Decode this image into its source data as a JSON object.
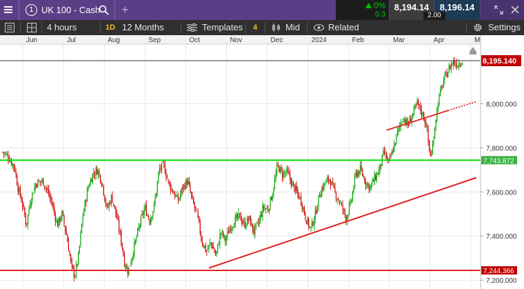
{
  "header": {
    "instrument_number": "1",
    "instrument": "UK 100 - Cash",
    "add_label": "+",
    "change_pct": "0%",
    "change_abs": "0.3",
    "sell_price": "8,194.14",
    "buy_price": "8,196.14",
    "spread": "2.00"
  },
  "toolbar": {
    "interval": "4 hours",
    "period_badge": "1D",
    "period": "12 Months",
    "templates_label": "Templates",
    "templates_count": "4",
    "price_type": "Mid",
    "related_label": "Related",
    "settings_label": "Settings"
  },
  "colors": {
    "header_bg": "#5b3f86",
    "toolbar_bg": "#2f2f2f",
    "up": "#00a000",
    "down": "#d00000",
    "support": "#00e000",
    "trend": "#e02020",
    "current_price_bg": "#c00000"
  },
  "chart_data": {
    "type": "candlestick",
    "x_labels": [
      "Jun",
      "Jul",
      "Aug",
      "Sep",
      "Oct",
      "Nov",
      "Dec",
      "2024",
      "Feb",
      "Mar",
      "Apr",
      "May"
    ],
    "y_ticks": [
      "8,000.000",
      "7,800.000",
      "7,600.000",
      "7,400.000",
      "7,200.000"
    ],
    "y_tick_values": [
      8000,
      7800,
      7600,
      7400,
      7200
    ],
    "ylim": [
      7160,
      8270
    ],
    "current_price": "8,195.140",
    "current_price_value": 8195.14,
    "horizontal_lines": [
      {
        "label": "7,743.872",
        "value": 7743.872,
        "color": "#00e000"
      },
      {
        "label": "7,244.366",
        "value": 7244.366,
        "color": "#e02020"
      }
    ],
    "trend_lines": [
      {
        "from": [
          0.435,
          7255
        ],
        "to": [
          1.0,
          7665
        ]
      },
      {
        "from": [
          0.81,
          7880
        ],
        "to": [
          1.0,
          8010
        ],
        "dotted_from": 0.94
      }
    ],
    "close_path": [
      [
        0.0,
        7780
      ],
      [
        0.012,
        7760
      ],
      [
        0.025,
        7710
      ],
      [
        0.032,
        7620
      ],
      [
        0.04,
        7560
      ],
      [
        0.05,
        7450
      ],
      [
        0.058,
        7560
      ],
      [
        0.07,
        7640
      ],
      [
        0.085,
        7650
      ],
      [
        0.095,
        7600
      ],
      [
        0.105,
        7540
      ],
      [
        0.115,
        7450
      ],
      [
        0.125,
        7500
      ],
      [
        0.135,
        7400
      ],
      [
        0.145,
        7260
      ],
      [
        0.152,
        7220
      ],
      [
        0.16,
        7310
      ],
      [
        0.168,
        7480
      ],
      [
        0.18,
        7620
      ],
      [
        0.19,
        7680
      ],
      [
        0.2,
        7700
      ],
      [
        0.21,
        7640
      ],
      [
        0.22,
        7520
      ],
      [
        0.23,
        7580
      ],
      [
        0.24,
        7490
      ],
      [
        0.25,
        7380
      ],
      [
        0.258,
        7270
      ],
      [
        0.265,
        7240
      ],
      [
        0.275,
        7330
      ],
      [
        0.29,
        7460
      ],
      [
        0.3,
        7530
      ],
      [
        0.31,
        7470
      ],
      [
        0.32,
        7540
      ],
      [
        0.33,
        7700
      ],
      [
        0.34,
        7720
      ],
      [
        0.35,
        7640
      ],
      [
        0.36,
        7600
      ],
      [
        0.37,
        7560
      ],
      [
        0.38,
        7620
      ],
      [
        0.39,
        7650
      ],
      [
        0.4,
        7560
      ],
      [
        0.41,
        7500
      ],
      [
        0.42,
        7380
      ],
      [
        0.43,
        7330
      ],
      [
        0.44,
        7370
      ],
      [
        0.45,
        7310
      ],
      [
        0.46,
        7420
      ],
      [
        0.47,
        7380
      ],
      [
        0.48,
        7440
      ],
      [
        0.49,
        7470
      ],
      [
        0.5,
        7490
      ],
      [
        0.51,
        7450
      ],
      [
        0.52,
        7480
      ],
      [
        0.53,
        7420
      ],
      [
        0.54,
        7460
      ],
      [
        0.55,
        7530
      ],
      [
        0.56,
        7520
      ],
      [
        0.57,
        7600
      ],
      [
        0.58,
        7720
      ],
      [
        0.59,
        7680
      ],
      [
        0.6,
        7690
      ],
      [
        0.61,
        7640
      ],
      [
        0.62,
        7600
      ],
      [
        0.63,
        7560
      ],
      [
        0.64,
        7480
      ],
      [
        0.65,
        7430
      ],
      [
        0.66,
        7500
      ],
      [
        0.67,
        7600
      ],
      [
        0.68,
        7640
      ],
      [
        0.69,
        7660
      ],
      [
        0.7,
        7600
      ],
      [
        0.71,
        7560
      ],
      [
        0.72,
        7510
      ],
      [
        0.725,
        7480
      ],
      [
        0.735,
        7550
      ],
      [
        0.745,
        7680
      ],
      [
        0.755,
        7700
      ],
      [
        0.765,
        7650
      ],
      [
        0.775,
        7620
      ],
      [
        0.785,
        7660
      ],
      [
        0.795,
        7700
      ],
      [
        0.805,
        7780
      ],
      [
        0.815,
        7730
      ],
      [
        0.825,
        7800
      ],
      [
        0.835,
        7880
      ],
      [
        0.845,
        7940
      ],
      [
        0.855,
        7900
      ],
      [
        0.865,
        7950
      ],
      [
        0.875,
        8000
      ],
      [
        0.885,
        7960
      ],
      [
        0.895,
        7900
      ],
      [
        0.9,
        7790
      ],
      [
        0.905,
        7760
      ],
      [
        0.912,
        7900
      ],
      [
        0.92,
        8020
      ],
      [
        0.93,
        8100
      ],
      [
        0.94,
        8150
      ],
      [
        0.95,
        8190
      ],
      [
        0.96,
        8180
      ],
      [
        0.97,
        8196
      ]
    ]
  }
}
